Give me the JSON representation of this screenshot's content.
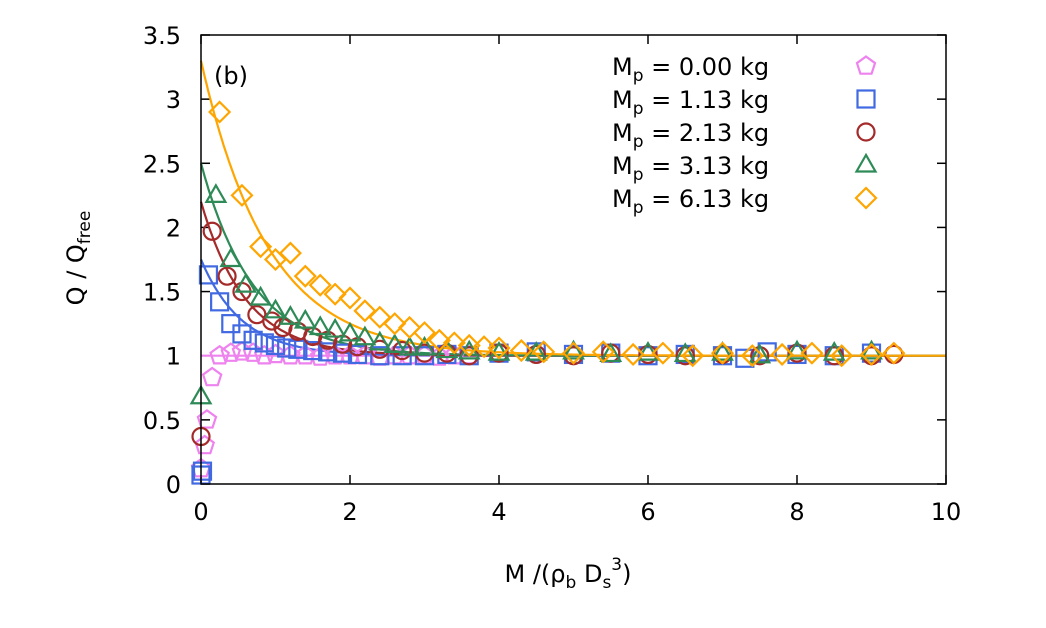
{
  "chart_data": {
    "type": "scatter",
    "panel_label": "(b)",
    "xlabel": {
      "base": "M /(ρ",
      "sub1": "b",
      "mid": " D",
      "sub2": "s",
      "sup": "3",
      "end": ")"
    },
    "ylabel": {
      "base": "Q / Q",
      "sub": "free"
    },
    "xlim": [
      0,
      10
    ],
    "ylim": [
      0,
      3.5
    ],
    "xticks": [
      0,
      2,
      4,
      6,
      8,
      10
    ],
    "yticks": [
      0,
      0.5,
      1,
      1.5,
      2,
      2.5,
      3,
      3.5
    ],
    "xtick_labels": [
      "0",
      "2",
      "4",
      "6",
      "8",
      "10"
    ],
    "ytick_labels": [
      "0",
      "0.5",
      "1",
      "1.5",
      "2",
      "2.5",
      "3",
      "3.5"
    ],
    "legend_position": "top-right",
    "series": [
      {
        "name": "0.00 kg",
        "label_prefix": "M",
        "label_sub": "p",
        "label_suffix": " = 0.00 kg",
        "color": "#ee82ee",
        "marker": "pentagon",
        "fit_amplitude": 0.0,
        "fit_decay": 1.0,
        "x": [
          0.0,
          0.05,
          0.08,
          0.15,
          0.25,
          0.4,
          0.55,
          0.7,
          0.85,
          1.0,
          1.2,
          1.4,
          1.6,
          1.8,
          2.0,
          2.2,
          2.4,
          2.6,
          2.8,
          3.0,
          3.2,
          3.4,
          3.6
        ],
        "y": [
          0.12,
          0.3,
          0.5,
          0.83,
          1.0,
          1.02,
          1.03,
          1.02,
          1.0,
          1.01,
          1.0,
          1.0,
          0.99,
          1.0,
          1.0,
          1.0,
          0.99,
          1.0,
          1.0,
          1.0,
          0.99,
          1.0,
          1.0
        ]
      },
      {
        "name": "1.13 kg",
        "label_prefix": "M",
        "label_sub": "p",
        "label_suffix": " = 1.13 kg",
        "color": "#4169e1",
        "marker": "square",
        "fit_amplitude": 0.75,
        "fit_decay": 0.55,
        "x": [
          0.0,
          0.02,
          0.1,
          0.25,
          0.4,
          0.55,
          0.7,
          0.85,
          1.0,
          1.15,
          1.3,
          1.5,
          1.7,
          1.9,
          2.1,
          2.4,
          2.7,
          3.0,
          3.3,
          3.6,
          4.0,
          4.5,
          5.0,
          5.5,
          6.0,
          6.5,
          7.0,
          7.3,
          7.6,
          8.0,
          8.5,
          9.0
        ],
        "y": [
          0.07,
          0.1,
          1.63,
          1.42,
          1.25,
          1.17,
          1.12,
          1.1,
          1.08,
          1.06,
          1.05,
          1.04,
          1.03,
          1.02,
          1.01,
          1.0,
          1.0,
          1.0,
          1.01,
          1.0,
          1.02,
          1.03,
          1.01,
          1.02,
          1.0,
          1.01,
          1.0,
          0.98,
          1.03,
          1.01,
          1.0,
          1.02
        ]
      },
      {
        "name": "2.13 kg",
        "label_prefix": "M",
        "label_sub": "p",
        "label_suffix": " = 2.13 kg",
        "color": "#a52a2a",
        "marker": "circle",
        "fit_amplitude": 1.2,
        "fit_decay": 0.6,
        "x": [
          0.0,
          0.15,
          0.35,
          0.55,
          0.75,
          0.95,
          1.1,
          1.3,
          1.5,
          1.7,
          1.9,
          2.1,
          2.4,
          2.7,
          3.0,
          3.3,
          3.6,
          4.0,
          4.5,
          5.0,
          5.5,
          6.0,
          6.5,
          7.0,
          7.5,
          8.0,
          8.5,
          9.0,
          9.3
        ],
        "y": [
          0.37,
          1.97,
          1.62,
          1.5,
          1.32,
          1.27,
          1.22,
          1.19,
          1.15,
          1.12,
          1.09,
          1.07,
          1.05,
          1.04,
          1.02,
          1.02,
          1.0,
          1.02,
          1.01,
          1.0,
          1.02,
          1.01,
          1.0,
          1.01,
          1.0,
          1.02,
          1.0,
          1.0,
          1.01
        ]
      },
      {
        "name": "3.13 kg",
        "label_prefix": "M",
        "label_sub": "p",
        "label_suffix": " = 3.13 kg",
        "color": "#2e8b57",
        "marker": "triangle",
        "fit_amplitude": 1.5,
        "fit_decay": 0.7,
        "x": [
          0.0,
          0.2,
          0.4,
          0.6,
          0.8,
          1.0,
          1.2,
          1.4,
          1.6,
          1.8,
          2.0,
          2.2,
          2.4,
          2.6,
          2.8,
          3.0,
          3.3,
          3.6,
          4.0,
          4.5,
          5.0,
          5.5,
          6.0,
          6.5,
          7.0,
          7.5,
          8.0,
          8.5,
          9.0
        ],
        "y": [
          0.68,
          2.25,
          1.75,
          1.55,
          1.45,
          1.35,
          1.3,
          1.27,
          1.22,
          1.2,
          1.17,
          1.14,
          1.1,
          1.08,
          1.06,
          1.06,
          1.04,
          1.03,
          1.02,
          1.02,
          1.03,
          1.01,
          1.02,
          1.01,
          1.02,
          1.0,
          1.03,
          1.02,
          1.03
        ]
      },
      {
        "name": "6.13 kg",
        "label_prefix": "M",
        "label_sub": "p",
        "label_suffix": " = 6.13 kg",
        "color": "#ffa500",
        "marker": "diamond",
        "fit_amplitude": 2.3,
        "fit_decay": 0.9,
        "x": [
          0.25,
          0.55,
          0.8,
          1.0,
          1.2,
          1.4,
          1.6,
          1.8,
          2.0,
          2.2,
          2.4,
          2.6,
          2.8,
          3.0,
          3.2,
          3.4,
          3.6,
          3.8,
          4.0,
          4.3,
          4.6,
          5.0,
          5.4,
          5.8,
          6.2,
          6.6,
          7.0,
          7.4,
          7.8,
          8.2,
          8.6,
          9.0,
          9.3
        ],
        "y": [
          2.9,
          2.25,
          1.85,
          1.75,
          1.8,
          1.62,
          1.55,
          1.48,
          1.45,
          1.35,
          1.3,
          1.25,
          1.22,
          1.18,
          1.12,
          1.1,
          1.08,
          1.07,
          1.06,
          1.04,
          1.03,
          1.02,
          1.03,
          1.01,
          1.02,
          1.0,
          1.02,
          1.0,
          1.01,
          1.02,
          1.0,
          1.01,
          1.02
        ]
      }
    ]
  }
}
